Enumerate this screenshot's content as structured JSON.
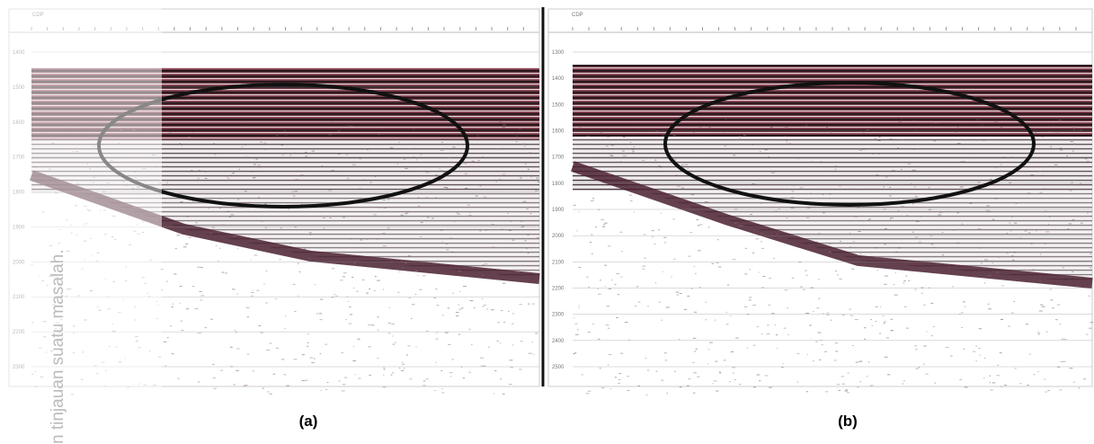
{
  "panels": [
    {
      "label": "(a)",
      "axis_title": "CDP",
      "depth_labels": [
        "1400",
        "1500",
        "1600",
        "1700",
        "1800",
        "1900",
        "2000",
        "2100",
        "2200",
        "2300"
      ]
    },
    {
      "label": "(b)",
      "axis_title": "CDP",
      "depth_labels": [
        "1300",
        "1400",
        "1500",
        "1600",
        "1700",
        "1800",
        "1900",
        "2000",
        "2100",
        "2200",
        "2300",
        "2400",
        "2500"
      ]
    }
  ],
  "watermark": "n tinjauan suatu masalah."
}
